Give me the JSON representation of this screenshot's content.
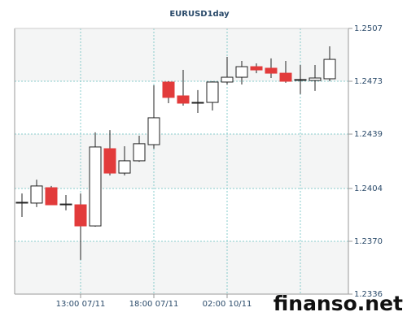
{
  "chart_data": {
    "type": "candlestick",
    "title": "EURUSD1day",
    "watermark": "finanso.net",
    "categories": [
      null,
      null,
      null,
      null,
      "13:00 07/11",
      null,
      null,
      null,
      null,
      "18:00 07/11",
      null,
      null,
      null,
      null,
      "02:00 10/11",
      null,
      null,
      null,
      null,
      null,
      null,
      null
    ],
    "open": [
      1.23951,
      1.23946,
      1.24045,
      1.2394,
      1.23935,
      1.23799,
      1.24296,
      1.24139,
      1.24218,
      1.24322,
      1.24725,
      1.24636,
      1.24594,
      1.24594,
      1.24725,
      1.24756,
      1.24824,
      1.24814,
      1.24782,
      1.24741,
      1.24735,
      1.24746
    ],
    "high": [
      1.24008,
      1.24097,
      1.24056,
      1.23998,
      1.24008,
      1.24401,
      1.24416,
      1.24312,
      1.2438,
      1.24704,
      1.2473,
      1.24803,
      1.24673,
      1.2473,
      1.24887,
      1.24861,
      1.24845,
      1.24877,
      1.24861,
      1.24835,
      1.24835,
      1.24955
    ],
    "low": [
      1.23857,
      1.2392,
      1.23935,
      1.23899,
      1.2358,
      1.23794,
      1.24124,
      1.24124,
      1.24212,
      1.24296,
      1.24589,
      1.24573,
      1.24526,
      1.24542,
      1.24709,
      1.24709,
      1.24782,
      1.24751,
      1.2472,
      1.24647,
      1.24668,
      1.2473
    ],
    "close": [
      1.23951,
      1.24056,
      1.23935,
      1.2394,
      1.23799,
      1.24307,
      1.24139,
      1.24218,
      1.24328,
      1.24495,
      1.24626,
      1.24589,
      1.24594,
      1.24725,
      1.24756,
      1.24824,
      1.24803,
      1.24782,
      1.2473,
      1.24741,
      1.24751,
      1.24871
    ],
    "up_color": "#ffffff",
    "down_color": "#e23b3b",
    "ylim": [
      1.2336,
      1.2507
    ],
    "yticks": [
      1.2336,
      {
        "value": 1.237,
        "label": "1.2370"
      },
      1.2404,
      1.2439,
      1.2473,
      1.2507
    ],
    "grid": true
  }
}
